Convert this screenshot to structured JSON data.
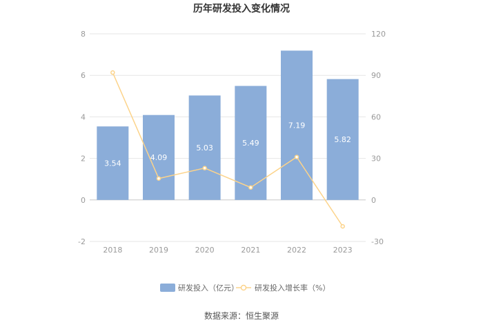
{
  "chart_data": {
    "type": "bar",
    "title": "历年研发投入变化情况",
    "categories": [
      "2018",
      "2019",
      "2020",
      "2021",
      "2022",
      "2023"
    ],
    "series": [
      {
        "name": "研发投入（亿元）",
        "type": "bar",
        "axis": "left",
        "color": "#8badd9",
        "values": [
          3.54,
          4.09,
          5.03,
          5.49,
          7.19,
          5.82
        ],
        "labels": [
          "3.54",
          "4.09",
          "5.03",
          "5.49",
          "7.19",
          "5.82"
        ]
      },
      {
        "name": "研发投入增长率（%）",
        "type": "line",
        "axis": "right",
        "color": "#fcd38a",
        "values": [
          92,
          15.5,
          23,
          9,
          31,
          -19.1
        ]
      }
    ],
    "y_left": {
      "ticks": [
        "-2",
        "0",
        "2",
        "4",
        "6",
        "8"
      ],
      "min": -2,
      "max": 8
    },
    "y_right": {
      "ticks": [
        "-30",
        "0",
        "30",
        "60",
        "90",
        "120"
      ],
      "min": -30,
      "max": 120
    },
    "grid": true,
    "legend_position": "bottom"
  },
  "source": "数据来源：恒生聚源"
}
